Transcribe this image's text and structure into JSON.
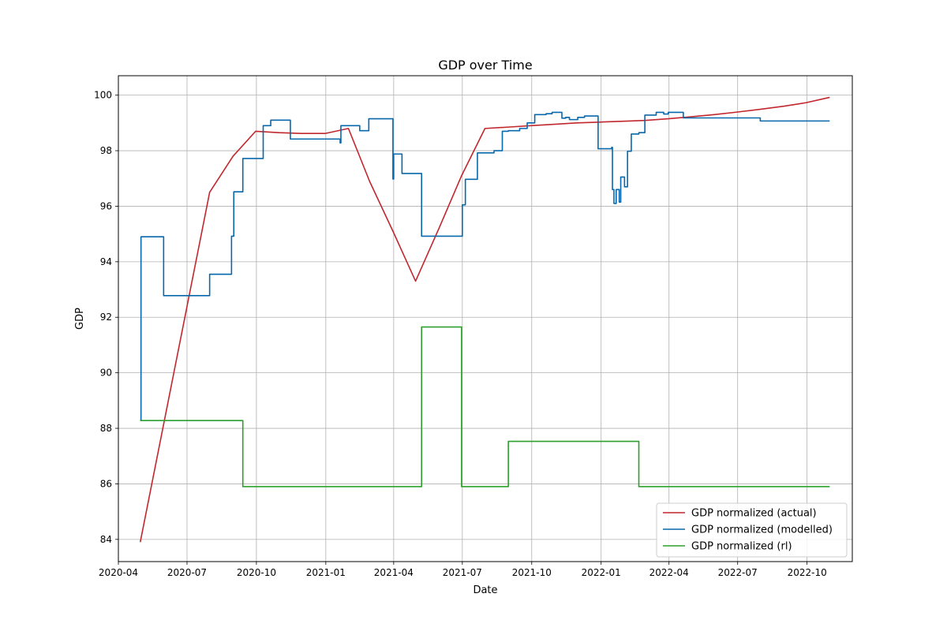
{
  "chart_data": {
    "type": "line",
    "title": "GDP over Time",
    "xlabel": "Date",
    "ylabel": "GDP",
    "x_axis_type": "date",
    "xlim": [
      "2020-04-01",
      "2022-11-30"
    ],
    "ylim": [
      83.2,
      100.7
    ],
    "x_ticks": [
      "2020-04",
      "2020-07",
      "2020-10",
      "2021-01",
      "2021-04",
      "2021-07",
      "2021-10",
      "2022-01",
      "2022-04",
      "2022-07",
      "2022-10"
    ],
    "y_ticks": [
      84,
      86,
      88,
      90,
      92,
      94,
      96,
      98,
      100
    ],
    "grid": true,
    "legend_position": "lower-right",
    "series": [
      {
        "name": "GDP normalized (actual)",
        "color": "#c1272d",
        "style": "line",
        "points": [
          [
            "2020-04-30",
            83.9
          ],
          [
            "2020-07-31",
            96.5
          ],
          [
            "2020-08-31",
            97.8
          ],
          [
            "2020-09-30",
            98.7
          ],
          [
            "2020-10-31",
            98.65
          ],
          [
            "2020-11-30",
            98.62
          ],
          [
            "2020-12-31",
            98.62
          ],
          [
            "2021-01-31",
            98.8
          ],
          [
            "2021-02-28",
            96.9
          ],
          [
            "2021-03-31",
            95.1
          ],
          [
            "2021-04-30",
            93.3
          ],
          [
            "2021-05-31",
            95.2
          ],
          [
            "2021-06-30",
            97.1
          ],
          [
            "2021-07-31",
            98.8
          ],
          [
            "2021-08-31",
            98.85
          ],
          [
            "2021-09-30",
            98.9
          ],
          [
            "2021-10-31",
            98.95
          ],
          [
            "2021-11-30",
            99.0
          ],
          [
            "2021-12-31",
            99.03
          ],
          [
            "2022-01-31",
            99.06
          ],
          [
            "2022-02-28",
            99.09
          ],
          [
            "2022-03-31",
            99.15
          ],
          [
            "2022-04-30",
            99.22
          ],
          [
            "2022-05-31",
            99.3
          ],
          [
            "2022-06-30",
            99.39
          ],
          [
            "2022-07-31",
            99.49
          ],
          [
            "2022-08-31",
            99.6
          ],
          [
            "2022-09-30",
            99.73
          ],
          [
            "2022-10-31",
            99.92
          ]
        ]
      },
      {
        "name": "GDP normalized (modelled)",
        "color": "#0868ac",
        "style": "steps-post",
        "points": [
          [
            "2020-04-30",
            88.3
          ],
          [
            "2020-05-01",
            94.9
          ],
          [
            "2020-05-31",
            92.78
          ],
          [
            "2020-07-31",
            93.55
          ],
          [
            "2020-08-29",
            94.92
          ],
          [
            "2020-09-01",
            96.52
          ],
          [
            "2020-09-13",
            97.72
          ],
          [
            "2020-10-10",
            98.9
          ],
          [
            "2020-10-20",
            99.1
          ],
          [
            "2020-11-15",
            98.42
          ],
          [
            "2021-01-20",
            98.28
          ],
          [
            "2021-01-21",
            98.9
          ],
          [
            "2021-02-15",
            98.72
          ],
          [
            "2021-02-27",
            99.15
          ],
          [
            "2021-03-31",
            96.98
          ],
          [
            "2021-04-01",
            97.88
          ],
          [
            "2021-04-12",
            97.18
          ],
          [
            "2021-05-08",
            94.92
          ],
          [
            "2021-07-01",
            96.05
          ],
          [
            "2021-07-05",
            96.97
          ],
          [
            "2021-07-21",
            97.92
          ],
          [
            "2021-08-12",
            98.0
          ],
          [
            "2021-08-23",
            98.7
          ],
          [
            "2021-08-31",
            98.72
          ],
          [
            "2021-09-15",
            98.8
          ],
          [
            "2021-09-25",
            99.0
          ],
          [
            "2021-10-05",
            99.3
          ],
          [
            "2021-10-20",
            99.33
          ],
          [
            "2021-10-28",
            99.38
          ],
          [
            "2021-11-10",
            99.17
          ],
          [
            "2021-11-15",
            99.2
          ],
          [
            "2021-11-20",
            99.12
          ],
          [
            "2021-12-01",
            99.2
          ],
          [
            "2021-12-10",
            99.25
          ],
          [
            "2021-12-28",
            98.07
          ],
          [
            "2022-01-15",
            98.12
          ],
          [
            "2022-01-16",
            96.6
          ],
          [
            "2022-01-18",
            96.1
          ],
          [
            "2022-01-21",
            96.6
          ],
          [
            "2022-01-25",
            96.15
          ],
          [
            "2022-01-27",
            97.05
          ],
          [
            "2022-02-01",
            96.7
          ],
          [
            "2022-02-05",
            97.98
          ],
          [
            "2022-02-10",
            98.6
          ],
          [
            "2022-02-20",
            98.65
          ],
          [
            "2022-02-28",
            99.28
          ],
          [
            "2022-03-15",
            99.38
          ],
          [
            "2022-03-25",
            99.32
          ],
          [
            "2022-03-31",
            99.38
          ],
          [
            "2022-04-20",
            99.18
          ],
          [
            "2022-07-31",
            99.07
          ],
          [
            "2022-10-31",
            99.07
          ]
        ]
      },
      {
        "name": "GDP normalized (rl)",
        "color": "#2ca02c",
        "style": "steps-post",
        "points": [
          [
            "2020-04-30",
            88.28
          ],
          [
            "2020-09-13",
            85.9
          ],
          [
            "2021-05-08",
            91.65
          ],
          [
            "2021-06-30",
            85.9
          ],
          [
            "2021-08-31",
            87.53
          ],
          [
            "2022-02-20",
            85.9
          ],
          [
            "2022-10-31",
            85.9
          ]
        ]
      }
    ]
  }
}
